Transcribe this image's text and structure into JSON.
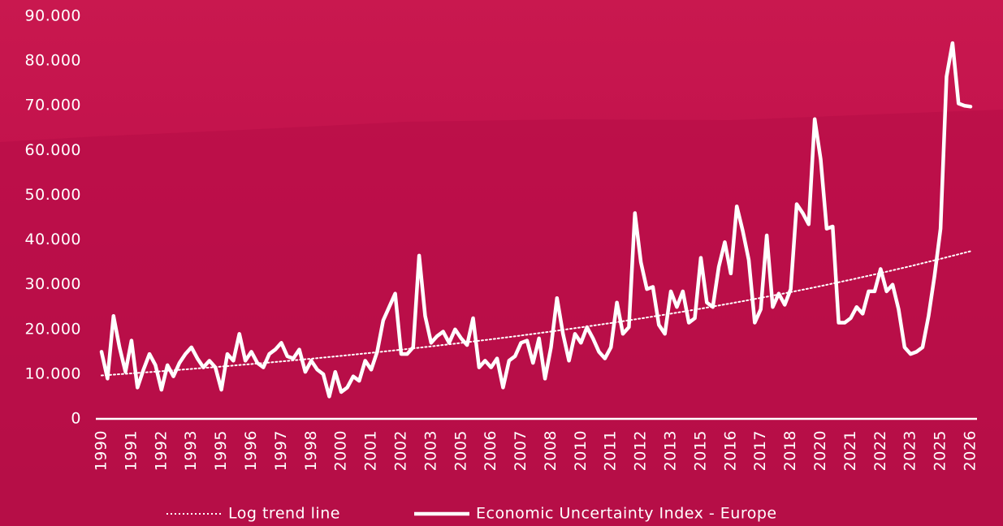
{
  "chart_data": {
    "type": "line",
    "categories": [
      "1990",
      null,
      null,
      null,
      null,
      "1991",
      null,
      null,
      null,
      null,
      "1992",
      null,
      null,
      null,
      null,
      "1993",
      null,
      null,
      null,
      null,
      "1995",
      null,
      null,
      null,
      null,
      "1996",
      null,
      null,
      null,
      null,
      "1997",
      null,
      null,
      null,
      null,
      "1998",
      null,
      null,
      null,
      null,
      "2000",
      null,
      null,
      null,
      null,
      "2001",
      null,
      null,
      null,
      null,
      "2002",
      null,
      null,
      null,
      null,
      "2003",
      null,
      null,
      null,
      null,
      "2005",
      null,
      null,
      null,
      null,
      "2006",
      null,
      null,
      null,
      null,
      "2007",
      null,
      null,
      null,
      null,
      "2008",
      null,
      null,
      null,
      null,
      "2010",
      null,
      null,
      null,
      null,
      "2011",
      null,
      null,
      null,
      null,
      "2012",
      null,
      null,
      null,
      null,
      "2013",
      null,
      null,
      null,
      null,
      "2015",
      null,
      null,
      null,
      null,
      "2016",
      null,
      null,
      null,
      null,
      "2017",
      null,
      null,
      null,
      null,
      "2018",
      null,
      null,
      null,
      null,
      "2020",
      null,
      null,
      null,
      null,
      "2021",
      null,
      null,
      null,
      null,
      "2022",
      null,
      null,
      null,
      null,
      "2023",
      null,
      null,
      null,
      null,
      "2025",
      null,
      null,
      null,
      null,
      "2026"
    ],
    "series": [
      {
        "name": "Log trend line",
        "color": "#ffffff",
        "style": "dotted",
        "values": [
          9700,
          9790,
          9880,
          9980,
          10070,
          10160,
          10260,
          10360,
          10450,
          10550,
          10650,
          10750,
          10850,
          10960,
          11060,
          11160,
          11270,
          11370,
          11480,
          11580,
          11690,
          11800,
          11910,
          12030,
          12140,
          12250,
          12370,
          12480,
          12600,
          12710,
          12830,
          12950,
          13080,
          13200,
          13320,
          13440,
          13570,
          13700,
          13830,
          13950,
          14080,
          14220,
          14350,
          14490,
          14620,
          14760,
          14900,
          15040,
          15180,
          15320,
          15460,
          15610,
          15760,
          15900,
          16050,
          16200,
          16350,
          16510,
          16660,
          16820,
          16970,
          17130,
          17290,
          17460,
          17620,
          17780,
          17950,
          18120,
          18290,
          18460,
          18630,
          18810,
          18990,
          19160,
          19340,
          19520,
          19710,
          19900,
          20080,
          20270,
          20450,
          20640,
          20840,
          21030,
          21230,
          21420,
          21620,
          21830,
          22030,
          22240,
          22440,
          22650,
          22870,
          23080,
          23300,
          23510,
          23740,
          23960,
          24190,
          24410,
          24640,
          24870,
          25110,
          25340,
          25580,
          25810,
          26060,
          26300,
          26550,
          26790,
          27040,
          27300,
          27560,
          27810,
          28070,
          28330,
          28600,
          28870,
          29140,
          29410,
          29680,
          29960,
          30250,
          30530,
          30820,
          31100,
          31400,
          31700,
          31990,
          32290,
          32580,
          32900,
          33210,
          33520,
          33830,
          34140,
          34470,
          34790,
          35120,
          35440,
          35770,
          36110,
          36450,
          36790,
          37130,
          37470
        ]
      },
      {
        "name": "Economic Uncertainty Index - Europe",
        "color": "#ffffff",
        "style": "solid",
        "values": [
          15000,
          9000,
          23000,
          16000,
          10500,
          17500,
          7000,
          11000,
          14500,
          12000,
          6500,
          12000,
          9500,
          12500,
          14500,
          16000,
          13500,
          11500,
          13000,
          11500,
          6500,
          14500,
          13000,
          19000,
          13000,
          15000,
          12500,
          11500,
          14500,
          15500,
          17000,
          14000,
          13500,
          15500,
          10500,
          13000,
          11000,
          10000,
          5000,
          10500,
          6000,
          7000,
          9500,
          8500,
          13000,
          11000,
          15000,
          22000,
          25000,
          28000,
          14500,
          14500,
          16000,
          36500,
          23000,
          17000,
          18500,
          19500,
          17000,
          20000,
          18000,
          16500,
          22500,
          11500,
          13000,
          11500,
          13500,
          7000,
          13000,
          14000,
          17000,
          17500,
          12500,
          18000,
          9000,
          16000,
          27000,
          19000,
          13000,
          19000,
          17000,
          20500,
          18000,
          15000,
          13500,
          16000,
          26000,
          19000,
          20500,
          46000,
          35000,
          29000,
          29500,
          21000,
          19000,
          28500,
          25000,
          28500,
          21500,
          22500,
          36000,
          26000,
          25000,
          34000,
          39500,
          32500,
          47500,
          42000,
          35500,
          21500,
          24500,
          41000,
          25000,
          28000,
          25500,
          29000,
          48000,
          46000,
          43500,
          67000,
          58000,
          42500,
          43000,
          21500,
          21500,
          22500,
          25000,
          23500,
          28500,
          28500,
          33500,
          28500,
          30000,
          24500,
          16000,
          14500,
          15000,
          16000,
          23000,
          32000,
          42500,
          76500,
          84000,
          70500,
          70000,
          69800
        ]
      }
    ],
    "ylim": [
      0,
      90000
    ],
    "yticks": [
      0,
      {
        "value": 10000,
        "label": "10.000"
      },
      {
        "value": 20000,
        "label": "20.000"
      },
      {
        "value": 30000,
        "label": "30.000"
      },
      {
        "value": 40000,
        "label": "40.000"
      },
      {
        "value": 50000,
        "label": "50.000"
      },
      {
        "value": 60000,
        "label": "60.000"
      },
      {
        "value": 70000,
        "label": "70.000"
      },
      {
        "value": 80000,
        "label": "80.000"
      },
      {
        "value": 90000,
        "label": "90.000"
      }
    ],
    "grid": false,
    "legend": "bottom"
  }
}
